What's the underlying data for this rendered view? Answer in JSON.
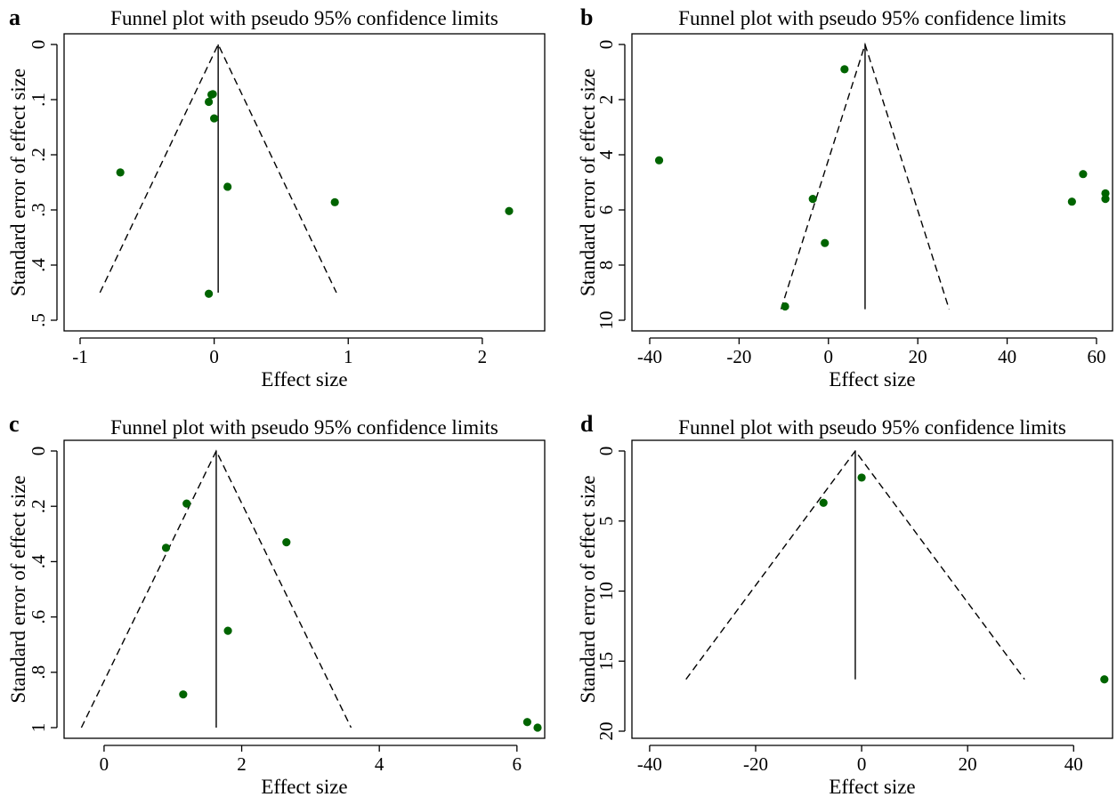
{
  "colors": {
    "point": "#006400",
    "line": "#000000"
  },
  "chart_data": [
    {
      "panel": "a",
      "type": "scatter",
      "title": "Funnel plot with pseudo 95% confidence limits",
      "xlabel": "Effect size",
      "ylabel": "Standard error of effect size",
      "xlim": [
        -1,
        2.2
      ],
      "ylim": [
        0,
        0.5
      ],
      "y_reversed": true,
      "x_ticks": [
        -1,
        0,
        1,
        2
      ],
      "x_tick_labels": [
        "-1",
        "0",
        "1",
        "2"
      ],
      "y_ticks": [
        0,
        0.1,
        0.2,
        0.3,
        0.4,
        0.5
      ],
      "y_tick_labels": [
        "0",
        ".1",
        ".2",
        ".3",
        ".4",
        ".5"
      ],
      "pooled_effect": 0.03,
      "max_se": 0.45,
      "points": [
        {
          "x": -0.01,
          "y": 0.09
        },
        {
          "x": -0.02,
          "y": 0.091
        },
        {
          "x": -0.04,
          "y": 0.104
        },
        {
          "x": 0.0,
          "y": 0.134
        },
        {
          "x": -0.7,
          "y": 0.232
        },
        {
          "x": 0.1,
          "y": 0.258
        },
        {
          "x": 0.9,
          "y": 0.286
        },
        {
          "x": 2.2,
          "y": 0.302
        },
        {
          "x": -0.04,
          "y": 0.452
        }
      ]
    },
    {
      "panel": "b",
      "type": "scatter",
      "title": "Funnel plot with pseudo 95% confidence limits",
      "xlabel": "Effect size",
      "ylabel": "Standard error of effect size",
      "xlim": [
        -40,
        62
      ],
      "ylim": [
        0,
        10
      ],
      "y_reversed": true,
      "x_ticks": [
        -40,
        -20,
        0,
        20,
        40,
        60
      ],
      "x_tick_labels": [
        "-40",
        "-20",
        "0",
        "20",
        "40",
        "60"
      ],
      "y_ticks": [
        0,
        2,
        4,
        6,
        8,
        10
      ],
      "y_tick_labels": [
        "0",
        "2",
        "4",
        "6",
        "8",
        "10"
      ],
      "pooled_effect": 8.2,
      "max_se": 9.6,
      "points": [
        {
          "x": 3.6,
          "y": 0.9
        },
        {
          "x": -37.9,
          "y": 4.2
        },
        {
          "x": 57,
          "y": 4.7
        },
        {
          "x": 62,
          "y": 5.4
        },
        {
          "x": 62,
          "y": 5.6
        },
        {
          "x": -3.5,
          "y": 5.6
        },
        {
          "x": 54.5,
          "y": 5.7
        },
        {
          "x": -0.8,
          "y": 7.2
        },
        {
          "x": -9.7,
          "y": 9.5
        }
      ]
    },
    {
      "panel": "c",
      "type": "scatter",
      "title": "Funnel plot with pseudo 95% confidence limits",
      "xlabel": "Effect size",
      "ylabel": "Standard error of effect size",
      "xlim": [
        -0.4,
        6.3
      ],
      "ylim": [
        0,
        1.0
      ],
      "y_reversed": true,
      "x_ticks": [
        0,
        2,
        4,
        6
      ],
      "x_tick_labels": [
        "0",
        "2",
        "4",
        "6"
      ],
      "y_ticks": [
        0,
        0.2,
        0.4,
        0.6,
        0.8,
        1.0
      ],
      "y_tick_labels": [
        "0",
        ".2",
        ".4",
        ".6",
        ".8",
        "1"
      ],
      "pooled_effect": 1.63,
      "max_se": 1.0,
      "points": [
        {
          "x": 1.2,
          "y": 0.19
        },
        {
          "x": 2.65,
          "y": 0.33
        },
        {
          "x": 0.9,
          "y": 0.35
        },
        {
          "x": 1.8,
          "y": 0.65
        },
        {
          "x": 1.15,
          "y": 0.88
        },
        {
          "x": 6.15,
          "y": 0.98
        },
        {
          "x": 6.3,
          "y": 1.0
        }
      ]
    },
    {
      "panel": "d",
      "type": "scatter",
      "title": "Funnel plot with pseudo 95% confidence limits",
      "xlabel": "Effect size",
      "ylabel": "Standard error of effect size",
      "xlim": [
        -42,
        46
      ],
      "ylim": [
        0,
        20
      ],
      "y_reversed": true,
      "x_ticks": [
        -40,
        -20,
        0,
        20,
        40
      ],
      "x_tick_labels": [
        "-40",
        "-20",
        "0",
        "20",
        "40"
      ],
      "y_ticks": [
        0,
        5,
        10,
        15,
        20
      ],
      "y_tick_labels": [
        "0",
        "5",
        "10",
        "15",
        "20"
      ],
      "pooled_effect": -1.2,
      "max_se": 16.3,
      "points": [
        {
          "x": 0,
          "y": 1.9
        },
        {
          "x": -7.2,
          "y": 3.7
        },
        {
          "x": 45.8,
          "y": 16.3
        }
      ]
    }
  ]
}
